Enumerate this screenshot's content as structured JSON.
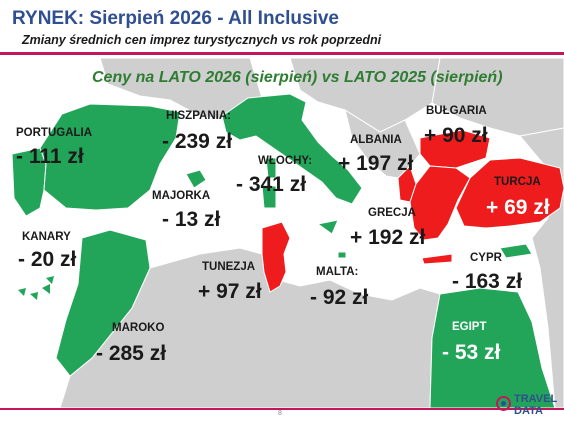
{
  "header": {
    "title": "RYNEK: Sierpień 2026 - All Inclusive",
    "subtitle": "Zmiany średnich cen imprez turystycznych vs rok poprzedni"
  },
  "map_heading": "Ceny na LATO 2026 (sierpień) vs  LATO 2025 (sierpień)",
  "colors": {
    "accent": "#c2185b",
    "title": "#2f4f8f",
    "decrease": "#22a559",
    "increase": "#ee1c1c",
    "land": "#cfcfcf",
    "sea": "#ffffff"
  },
  "destinations": [
    {
      "name": "PORTUGALIA",
      "change": "- 111 zł",
      "trend": "decrease"
    },
    {
      "name": "HISZPANIA:",
      "change": "- 239 zł",
      "trend": "decrease"
    },
    {
      "name": "MAJORKA",
      "change": "- 13 zł",
      "trend": "decrease"
    },
    {
      "name": "KANARY",
      "change": "- 20 zł",
      "trend": "decrease"
    },
    {
      "name": "MAROKO",
      "change": "- 285 zł",
      "trend": "decrease"
    },
    {
      "name": "WŁOCHY:",
      "change": "- 341 zł",
      "trend": "decrease"
    },
    {
      "name": "TUNEZJA",
      "change": "+ 97 zł",
      "trend": "increase"
    },
    {
      "name": "MALTA:",
      "change": "- 92 zł",
      "trend": "decrease"
    },
    {
      "name": "ALBANIA",
      "change": "+ 197 zł",
      "trend": "increase"
    },
    {
      "name": "BUŁGARIA",
      "change": "+ 90 zł",
      "trend": "increase"
    },
    {
      "name": "GRECJA",
      "change": "+ 192 zł",
      "trend": "increase"
    },
    {
      "name": "TURCJA",
      "change": "+ 69 zł",
      "trend": "increase"
    },
    {
      "name": "CYPR",
      "change": "- 163 zł",
      "trend": "decrease"
    },
    {
      "name": "EGIPT",
      "change": "- 53 zł",
      "trend": "decrease"
    }
  ],
  "footer": {
    "page_number": "8",
    "logo_line1": "TRAVEL",
    "logo_line2": "DATA"
  }
}
